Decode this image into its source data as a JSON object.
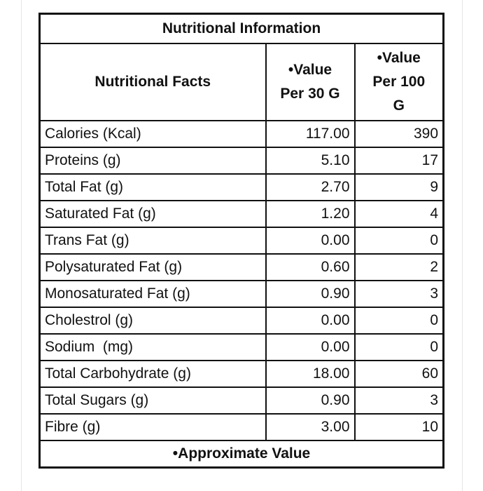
{
  "title": "Nutritional Information",
  "table": {
    "header": [
      "Nutritional Facts",
      "•Value\nPer 30 G",
      "•Value\nPer 100\nG"
    ],
    "rows": [
      [
        "Calories (Kcal)",
        "117.00",
        "390"
      ],
      [
        "Proteins (g)",
        "5.10",
        "17"
      ],
      [
        "Total Fat (g)",
        "2.70",
        "9"
      ],
      [
        "Saturated Fat (g)",
        "1.20",
        "4"
      ],
      [
        "Trans Fat (g)",
        "0.00",
        "0"
      ],
      [
        "Polysaturated Fat (g)",
        "0.60",
        "2"
      ],
      [
        "Monosaturated Fat (g)",
        "0.90",
        "3"
      ],
      [
        "Cholestrol (g)",
        "0.00",
        "0"
      ],
      [
        "Sodium  (mg)",
        "0.00",
        "0"
      ],
      [
        "Total Carbohydrate (g)",
        "18.00",
        "60"
      ],
      [
        "Total Sugars (g)",
        "0.90",
        "3"
      ],
      [
        "Fibre (g)",
        "3.00",
        "10"
      ]
    ]
  },
  "footnote": "•Approximate Value"
}
